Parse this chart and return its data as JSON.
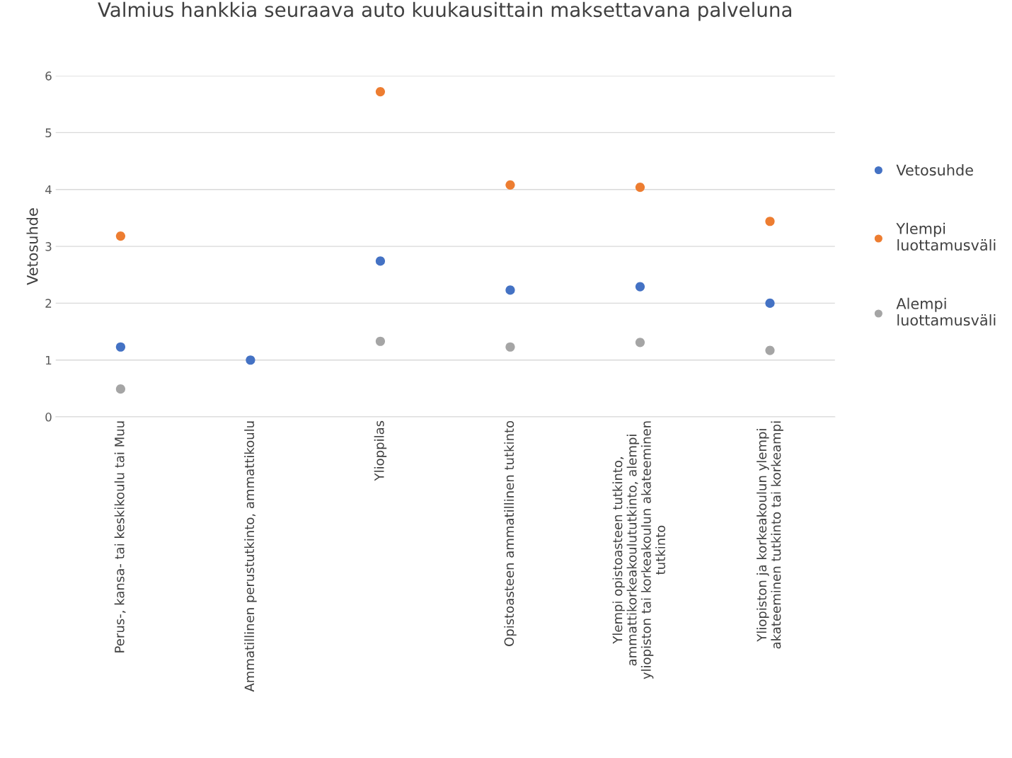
{
  "chart_data": {
    "type": "scatter",
    "title": "Valmius hankkia seuraava auto kuukausittain maksettavana palveluna",
    "ylabel": "Vetosuhde",
    "categories": [
      "Perus-, kansa- tai keskikoulu tai Muu",
      "Ammatillinen perustutkinto, ammattikoulu",
      "Ylioppilas",
      "Opistoasteen ammatillinen tutkinto",
      "Ylempi opistoasteen tutkinto,\nammattikorkeakoulututkinto, alempi\nyliopiston tai korkeakoulun akateeminen\ntutkinto",
      "Yliopiston ja korkeakoulun ylempi\nakateeminen tutkinto tai korkeampi"
    ],
    "series": [
      {
        "name": "Vetosuhde",
        "color": "#4472c4",
        "values": [
          1.23,
          1.0,
          2.74,
          2.23,
          2.29,
          2.0
        ]
      },
      {
        "name": "Ylempi\nluottamusväli",
        "color": "#ed7d31",
        "values": [
          3.18,
          null,
          5.72,
          4.08,
          4.04,
          3.44
        ]
      },
      {
        "name": "Alempi\nluottamusväli",
        "color": "#a5a5a5",
        "values": [
          0.49,
          null,
          1.33,
          1.23,
          1.31,
          1.17
        ]
      }
    ],
    "ylim": [
      0,
      6
    ],
    "yticks": [
      0,
      1,
      2,
      3,
      4,
      5,
      6
    ],
    "grid": "y",
    "legend": "right",
    "marker": "circle"
  }
}
